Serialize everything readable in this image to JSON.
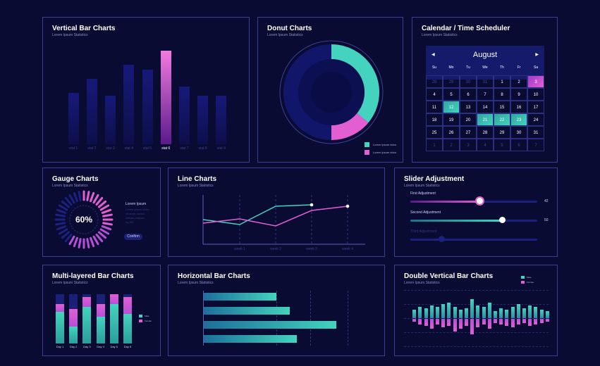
{
  "colors": {
    "accent_pink": "#e25fd2",
    "accent_teal": "#43d3be",
    "bar_dim": "#15186a",
    "panel_border": "#3b3f93",
    "bg": "#0a0b33"
  },
  "vbar": {
    "title": "Vertical Bar Charts",
    "subtitle": "Lorem Ipsum Statistics",
    "categories": [
      "stat 1",
      "stat 2",
      "stat 3",
      "stat 4",
      "stat 5",
      "stat 6",
      "stat 7",
      "stat 8",
      "stat 9"
    ],
    "values": [
      55,
      70,
      52,
      85,
      80,
      100,
      62,
      52,
      52
    ],
    "highlight_index": 5,
    "max": 100
  },
  "donut": {
    "title": "Donut Charts",
    "subtitle": "Lorem Ipsum Statistics",
    "segments": [
      {
        "fraction": 0.36,
        "color": "#43d3be"
      },
      {
        "fraction": 0.14,
        "color": "#e25fd2"
      },
      {
        "fraction": 0.5,
        "color": "#12166a"
      }
    ],
    "legend": [
      "Lorem ipsum dolor",
      "Lorem ipsum dolor"
    ]
  },
  "calendar": {
    "title": "Calendar / Time Scheduler",
    "subtitle": "Lorem Ipsum Statistics",
    "month": "August",
    "prev": "◀",
    "next": "▶",
    "weekdays": [
      "Su",
      "Mo",
      "Tu",
      "We",
      "Th",
      "Fr",
      "Sa"
    ],
    "weeks": [
      [
        "28",
        "29",
        "30",
        "31",
        "1",
        "2",
        "3"
      ],
      [
        "4",
        "5",
        "6",
        "7",
        "8",
        "9",
        "10"
      ],
      [
        "11",
        "12",
        "13",
        "14",
        "15",
        "16",
        "17"
      ],
      [
        "18",
        "19",
        "20",
        "21",
        "22",
        "23",
        "24"
      ],
      [
        "25",
        "26",
        "27",
        "28",
        "29",
        "30",
        "31"
      ],
      [
        "1",
        "2",
        "3",
        "4",
        "5",
        "6",
        "7"
      ]
    ]
  },
  "gauge": {
    "title": "Gauge Charts",
    "subtitle": "Lorem Ipsum Statistics",
    "value_label": "60%",
    "value": 0.6,
    "side_title": "Lorem Ipsum",
    "side_text": [
      "Lorem ipsum dolor",
      "sit amet, conse-",
      "ctetuer adipisci",
      "ng elit."
    ],
    "button": "Confirm"
  },
  "line": {
    "title": "Line Charts",
    "subtitle": "Lorem Ipsum Statistics",
    "categories": [
      "week 1",
      "week 2",
      "week 3",
      "week 4"
    ]
  },
  "line_chart_data": {
    "type": "line",
    "x": [
      0,
      1,
      2,
      3,
      4,
      5
    ],
    "series": [
      {
        "values": [
          50,
          45,
          82,
          84
        ],
        "color": "#43d3be"
      },
      {
        "values": [
          45,
          50,
          35,
          60,
          75
        ],
        "color": "#e25fd2"
      }
    ]
  },
  "slider": {
    "title": "Slider Adjustment",
    "subtitle": "Lorem Ipsum Statistics",
    "items": [
      {
        "label": "First Adjustment",
        "value": "42",
        "fraction": 0.55,
        "kind": "pink"
      },
      {
        "label": "Second Adjustment",
        "value": "50",
        "fraction": 0.73,
        "kind": "teal"
      },
      {
        "label": "Third Adjustment",
        "value": "",
        "fraction": 0.25,
        "kind": "dim"
      }
    ]
  },
  "mlbar": {
    "title": "Multi-layered Bar Charts",
    "subtitle": "Lorem Ipsum Statistics",
    "categories": [
      "Day 1",
      "Day 2",
      "Day 3",
      "Day 4",
      "Day 5",
      "Day 6"
    ],
    "teal": [
      65,
      35,
      75,
      55,
      80,
      60
    ],
    "pink": [
      15,
      35,
      20,
      25,
      20,
      35
    ],
    "legend": [
      "Male",
      "Female"
    ]
  },
  "hbar": {
    "title": "Horizontal Bar Charts",
    "subtitle": "Lorem Ipsum Statistics",
    "values": [
      55,
      65,
      100,
      70
    ]
  },
  "dvbar": {
    "title": "Double Vertical Bar Charts",
    "subtitle": "Lorem Ipsum Statistics",
    "legend": [
      "Male",
      "Female"
    ],
    "up": [
      30,
      40,
      35,
      45,
      40,
      50,
      55,
      40,
      30,
      35,
      70,
      45,
      40,
      55,
      25,
      35,
      30,
      40,
      50,
      35,
      45,
      40,
      30,
      25
    ],
    "down": [
      10,
      20,
      25,
      35,
      20,
      30,
      25,
      45,
      35,
      25,
      55,
      30,
      20,
      35,
      15,
      20,
      25,
      30,
      20,
      15,
      25,
      20,
      15,
      10
    ]
  }
}
